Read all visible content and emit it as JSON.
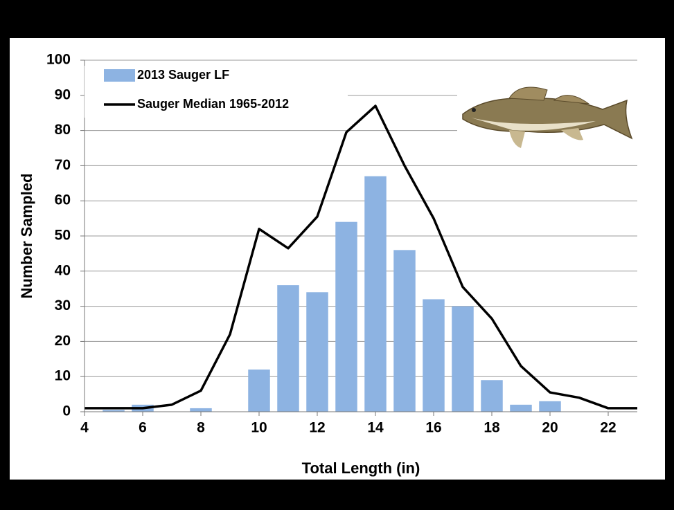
{
  "chart_data": {
    "type": "bar",
    "xlabel": "Total Length (in)",
    "ylabel": "Number Sampled",
    "xlim": [
      4,
      23
    ],
    "xticks": [
      4,
      6,
      8,
      10,
      12,
      14,
      16,
      18,
      20,
      22
    ],
    "ylim": [
      0,
      100
    ],
    "yticks": [
      0,
      10,
      20,
      30,
      40,
      50,
      60,
      70,
      80,
      90,
      100
    ],
    "grid": true,
    "legend": "top-left",
    "series": [
      {
        "name": "2013 Sauger LF",
        "type": "bar",
        "color": "#8db3e2",
        "x": [
          5,
          6,
          7,
          8,
          9,
          10,
          11,
          12,
          13,
          14,
          15,
          16,
          17,
          18,
          19,
          20
        ],
        "values": [
          0.5,
          2,
          0,
          1,
          0,
          12,
          36,
          34,
          54,
          67,
          46,
          32,
          30,
          9,
          2,
          3
        ]
      },
      {
        "name": "Sauger Median 1965-2012",
        "type": "line",
        "color": "#000000",
        "x": [
          4,
          5,
          6,
          7,
          8,
          9,
          10,
          11,
          12,
          13,
          14,
          15,
          16,
          17,
          18,
          19,
          20,
          21,
          22,
          23
        ],
        "values": [
          1,
          1,
          1,
          2,
          6,
          22,
          52,
          46.5,
          55.5,
          79.5,
          87,
          70,
          55,
          35.5,
          26.5,
          13,
          5.5,
          4,
          1,
          1
        ]
      }
    ]
  }
}
